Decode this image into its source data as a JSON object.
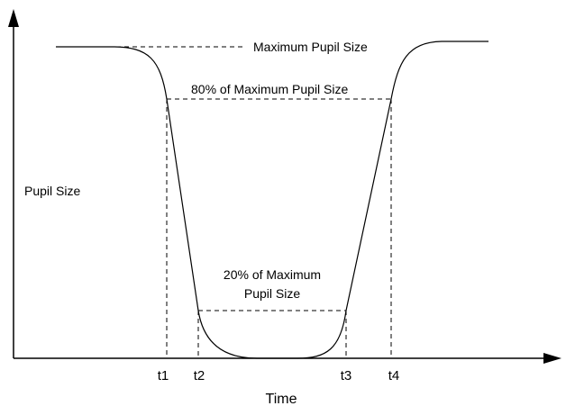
{
  "diagram": {
    "y_axis_label": "Pupil Size",
    "x_axis_label": "Time",
    "annotations": {
      "max": "Maximum Pupil Size",
      "eighty": "80% of Maximum Pupil Size",
      "twenty_line1": "20% of Maximum",
      "twenty_line2": "Pupil Size"
    },
    "time_markers": [
      "t1",
      "t2",
      "t3",
      "t4"
    ]
  }
}
